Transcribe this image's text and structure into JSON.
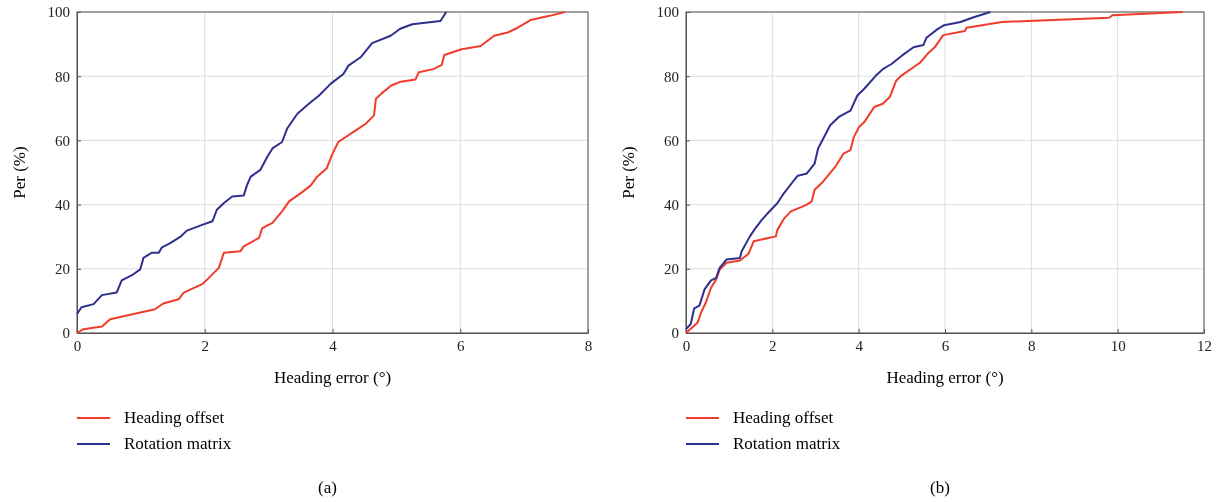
{
  "chart_data": [
    {
      "type": "line",
      "xlabel": "Heading error (°)",
      "ylabel": "Per (%)",
      "xlim": [
        0,
        8
      ],
      "xticks": [
        0,
        2,
        4,
        6,
        8
      ],
      "ylim": [
        0,
        100
      ],
      "yticks": [
        0,
        20,
        40,
        60,
        80,
        100
      ],
      "grid": true,
      "legend": "bottom left",
      "annotations": [
        "(a)"
      ],
      "series": [
        {
          "name": "Heading offset",
          "color": "#f03c2a",
          "x": [
            0,
            0.1,
            0.39,
            0.52,
            1.22,
            1.35,
            1.59,
            1.67,
            1.96,
            2.04,
            2.22,
            2.3,
            2.56,
            2.61,
            2.85,
            2.9,
            3.06,
            3.21,
            3.32,
            3.5,
            3.66,
            3.76,
            3.91,
            3.99,
            4.09,
            4.37,
            4.52,
            4.65,
            4.68,
            4.76,
            4.92,
            5.07,
            5.3,
            5.35,
            5.58,
            5.71,
            5.75,
            6.02,
            6.32,
            6.53,
            6.74,
            6.9,
            7.1,
            7.4,
            7.64
          ],
          "values": [
            0,
            1.2,
            2,
            4.3,
            7.4,
            9.2,
            10.5,
            12.6,
            15.2,
            16.7,
            20.3,
            25,
            25.5,
            27,
            29.6,
            32.7,
            34.3,
            37.9,
            41,
            43.5,
            46,
            48.7,
            51.3,
            55.4,
            59.5,
            63.2,
            65.2,
            67.8,
            73,
            74.5,
            77.1,
            78.3,
            79,
            81.2,
            82.2,
            83.5,
            86.6,
            88.4,
            89.4,
            92.6,
            93.6,
            95.1,
            97.5,
            98.8,
            100
          ]
        },
        {
          "name": "Rotation matrix",
          "color": "#2e2f8f",
          "x": [
            0,
            0.07,
            0.26,
            0.39,
            0.62,
            0.7,
            0.86,
            0.99,
            1.04,
            1.17,
            1.28,
            1.33,
            1.46,
            1.62,
            1.72,
            1.96,
            2.12,
            2.19,
            2.3,
            2.43,
            2.61,
            2.66,
            2.72,
            2.87,
            2.98,
            3.06,
            3.21,
            3.29,
            3.45,
            3.63,
            3.79,
            3.97,
            4.17,
            4.25,
            4.44,
            4.62,
            4.91,
            5.06,
            5.25,
            5.69,
            5.78
          ],
          "values": [
            5.9,
            8,
            9,
            11.8,
            12.6,
            16.4,
            18,
            19.8,
            23.4,
            25,
            25,
            26.7,
            28,
            30,
            31.9,
            33.7,
            34.8,
            38.4,
            40.5,
            42.5,
            42.8,
            46,
            48.7,
            50.8,
            54.9,
            57.5,
            59.5,
            63.7,
            68.3,
            71.4,
            74,
            77.6,
            80.7,
            83.3,
            85.9,
            90.3,
            92.6,
            94.8,
            96.2,
            97.2,
            100
          ]
        }
      ]
    },
    {
      "type": "line",
      "xlabel": "Heading error (°)",
      "ylabel": "Per (%)",
      "xlim": [
        0,
        12
      ],
      "xticks": [
        0,
        2,
        4,
        6,
        8,
        10,
        12
      ],
      "ylim": [
        0,
        100
      ],
      "yticks": [
        0,
        20,
        40,
        60,
        80,
        100
      ],
      "grid": true,
      "legend": "bottom left",
      "annotations": [
        "(b)"
      ],
      "series": [
        {
          "name": "Heading offset",
          "color": "#f03c2a",
          "x": [
            0,
            0.15,
            0.27,
            0.35,
            0.46,
            0.58,
            0.7,
            0.78,
            0.94,
            1.25,
            1.45,
            1.57,
            2.08,
            2.12,
            2.28,
            2.43,
            2.79,
            2.91,
            2.98,
            3.18,
            3.46,
            3.65,
            3.81,
            3.89,
            4.01,
            4.13,
            4.36,
            4.56,
            4.72,
            4.87,
            4.99,
            5.27,
            5.43,
            5.59,
            5.76,
            5.96,
            6.46,
            6.5,
            7.32,
            9.8,
            9.88,
            11.5
          ],
          "values": [
            0,
            1.8,
            3.3,
            6.4,
            9.5,
            14.1,
            16.7,
            19.8,
            21.9,
            22.6,
            24.7,
            28.6,
            30.1,
            32.2,
            35.8,
            37.9,
            39.9,
            41,
            44.6,
            47.2,
            51.8,
            55.9,
            57,
            61.1,
            64.2,
            65.7,
            70.4,
            71.4,
            73.5,
            78.6,
            80.2,
            82.8,
            84.3,
            86.9,
            89,
            92.8,
            94.1,
            95.1,
            96.9,
            98.2,
            99,
            100
          ]
        },
        {
          "name": "Rotation matrix",
          "color": "#2e2f8f",
          "x": [
            0,
            0.11,
            0.19,
            0.31,
            0.43,
            0.58,
            0.7,
            0.78,
            0.94,
            1.25,
            1.29,
            1.48,
            1.61,
            1.76,
            1.92,
            2.12,
            2.24,
            2.48,
            2.59,
            2.8,
            2.98,
            3.06,
            3.22,
            3.34,
            3.54,
            3.81,
            3.97,
            4.13,
            4.4,
            4.56,
            4.76,
            5.0,
            5.27,
            5.5,
            5.57,
            5.82,
            5.98,
            6.36,
            6.63,
            7.05
          ],
          "values": [
            1.2,
            2.8,
            7.7,
            8.5,
            13.6,
            16.4,
            17.2,
            20.3,
            22.9,
            23.4,
            25.5,
            30.1,
            32.7,
            35.3,
            37.7,
            40.5,
            43,
            47.2,
            49,
            49.7,
            52.8,
            57.5,
            61.6,
            64.7,
            67.3,
            69.3,
            74,
            76.1,
            80.2,
            82.2,
            83.8,
            86.4,
            89,
            89.7,
            92,
            94.6,
            95.9,
            96.9,
            98.2,
            100
          ]
        }
      ]
    }
  ]
}
